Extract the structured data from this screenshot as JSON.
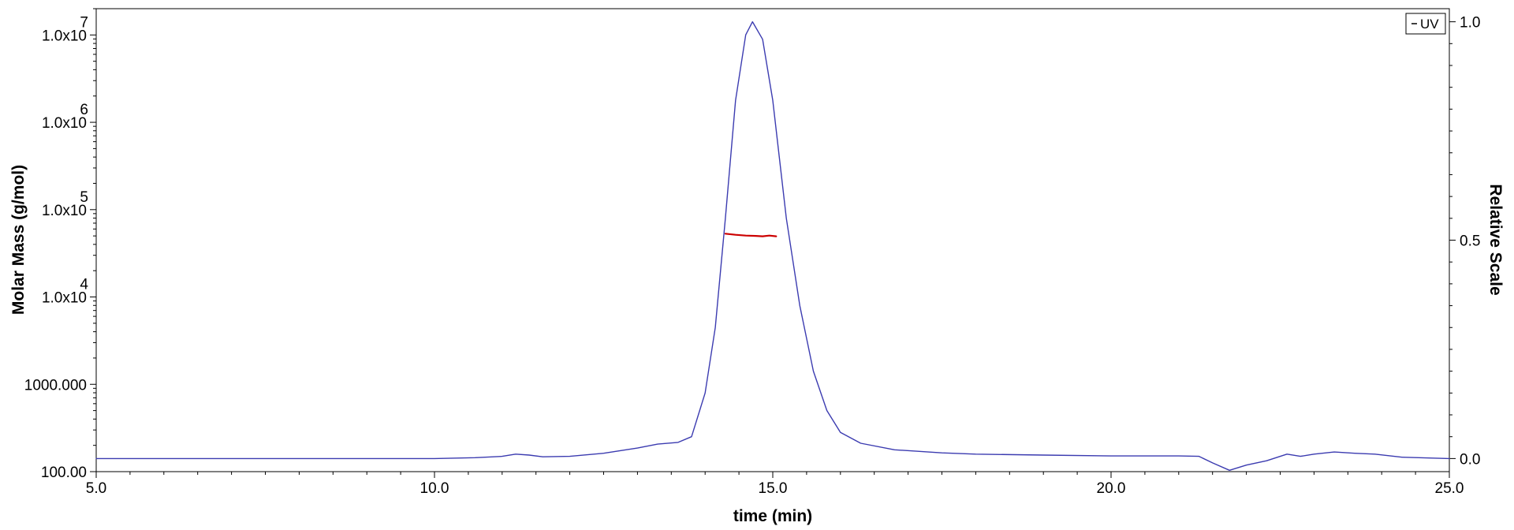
{
  "chart_data": {
    "type": "line",
    "xlabel": "time (min)",
    "ylabel_left": "Molar Mass (g/mol)",
    "ylabel_right": "Relative Scale",
    "xlim": [
      5.0,
      25.0
    ],
    "ylim_left": [
      100,
      20000000
    ],
    "ylim_right": [
      -0.03,
      1.03
    ],
    "left_scale": "log",
    "x_ticks": [
      5.0,
      10.0,
      15.0,
      20.0,
      25.0
    ],
    "x_tick_labels": [
      "5.0",
      "10.0",
      "15.0",
      "20.0",
      "25.0"
    ],
    "left_ticks": [
      {
        "value": 10000000,
        "base": "1.0x10",
        "exp": "7"
      },
      {
        "value": 1000000,
        "base": "1.0x10",
        "exp": "6"
      },
      {
        "value": 100000,
        "base": "1.0x10",
        "exp": "5"
      },
      {
        "value": 10000,
        "base": "1.0x10",
        "exp": "4"
      },
      {
        "value": 1000,
        "base": "1000.000",
        "exp": ""
      },
      {
        "value": 100,
        "base": "100.00",
        "exp": ""
      }
    ],
    "right_ticks": [
      1.0,
      0.5,
      0.0
    ],
    "right_tick_labels": [
      "1.0",
      "0.5",
      "0.0"
    ],
    "legend": {
      "position": "top-right",
      "entries": [
        {
          "name": "UV",
          "color": "#3b3bb0"
        }
      ]
    },
    "grid": false,
    "series": [
      {
        "name": "UV",
        "axis": "right",
        "color": "#3b3bb0",
        "points": [
          [
            5.0,
            0.0
          ],
          [
            10.0,
            0.0
          ],
          [
            10.6,
            0.002
          ],
          [
            11.0,
            0.005
          ],
          [
            11.2,
            0.01
          ],
          [
            11.4,
            0.008
          ],
          [
            11.6,
            0.004
          ],
          [
            12.0,
            0.005
          ],
          [
            12.5,
            0.012
          ],
          [
            13.0,
            0.024
          ],
          [
            13.3,
            0.033
          ],
          [
            13.6,
            0.037
          ],
          [
            13.8,
            0.05
          ],
          [
            14.0,
            0.15
          ],
          [
            14.15,
            0.3
          ],
          [
            14.3,
            0.55
          ],
          [
            14.45,
            0.82
          ],
          [
            14.6,
            0.97
          ],
          [
            14.7,
            1.0
          ],
          [
            14.85,
            0.96
          ],
          [
            15.0,
            0.82
          ],
          [
            15.2,
            0.55
          ],
          [
            15.4,
            0.35
          ],
          [
            15.6,
            0.2
          ],
          [
            15.8,
            0.11
          ],
          [
            16.0,
            0.06
          ],
          [
            16.3,
            0.035
          ],
          [
            16.8,
            0.02
          ],
          [
            17.5,
            0.013
          ],
          [
            18.0,
            0.01
          ],
          [
            19.0,
            0.008
          ],
          [
            20.0,
            0.006
          ],
          [
            21.0,
            0.006
          ],
          [
            21.3,
            0.005
          ],
          [
            21.5,
            -0.01
          ],
          [
            21.75,
            -0.027
          ],
          [
            22.0,
            -0.015
          ],
          [
            22.3,
            -0.005
          ],
          [
            22.6,
            0.01
          ],
          [
            22.8,
            0.005
          ],
          [
            23.0,
            0.01
          ],
          [
            23.3,
            0.015
          ],
          [
            23.6,
            0.012
          ],
          [
            23.9,
            0.01
          ],
          [
            24.3,
            0.003
          ],
          [
            25.0,
            0.0
          ]
        ]
      },
      {
        "name": "Molar Mass",
        "axis": "left",
        "color": "#cc0000",
        "points": [
          [
            14.3,
            53000
          ],
          [
            14.45,
            51500
          ],
          [
            14.6,
            50500
          ],
          [
            14.75,
            50000
          ],
          [
            14.85,
            49500
          ],
          [
            14.95,
            50500
          ],
          [
            15.05,
            49500
          ]
        ]
      }
    ]
  }
}
